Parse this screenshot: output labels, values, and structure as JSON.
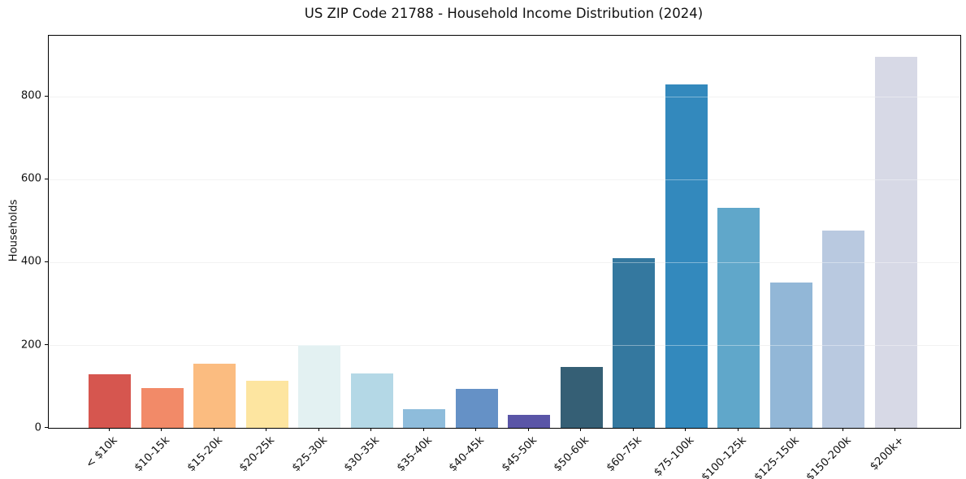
{
  "chart_data": {
    "type": "bar",
    "title": "US ZIP Code 21788 - Household Income Distribution (2024)",
    "xlabel": "",
    "ylabel": "Households",
    "categories": [
      "< $10k",
      "$10-15k",
      "$15-20k",
      "$20-25k",
      "$25-30k",
      "$30-35k",
      "$35-40k",
      "$40-45k",
      "$45-50k",
      "$50-60k",
      "$60-75k",
      "$75-100k",
      "$100-125k",
      "$125-150k",
      "$150-200k",
      "$200k+"
    ],
    "values": [
      130,
      95,
      154,
      113,
      200,
      132,
      46,
      94,
      31,
      147,
      409,
      828,
      531,
      350,
      476,
      895
    ],
    "bar_colors": [
      "#d6564f",
      "#f28a68",
      "#fbbc80",
      "#fde5a0",
      "#e3f1f2",
      "#b4d8e6",
      "#8ebcdb",
      "#6591c6",
      "#5a55a7",
      "#355f75",
      "#34789f",
      "#3389bd",
      "#60a7ca",
      "#92b7d7",
      "#b9c9e0",
      "#d7d9e6"
    ],
    "yticks": [
      0,
      200,
      400,
      600,
      800
    ],
    "ylim": [
      0,
      946
    ],
    "grid": "horizontal",
    "legend": "none"
  }
}
